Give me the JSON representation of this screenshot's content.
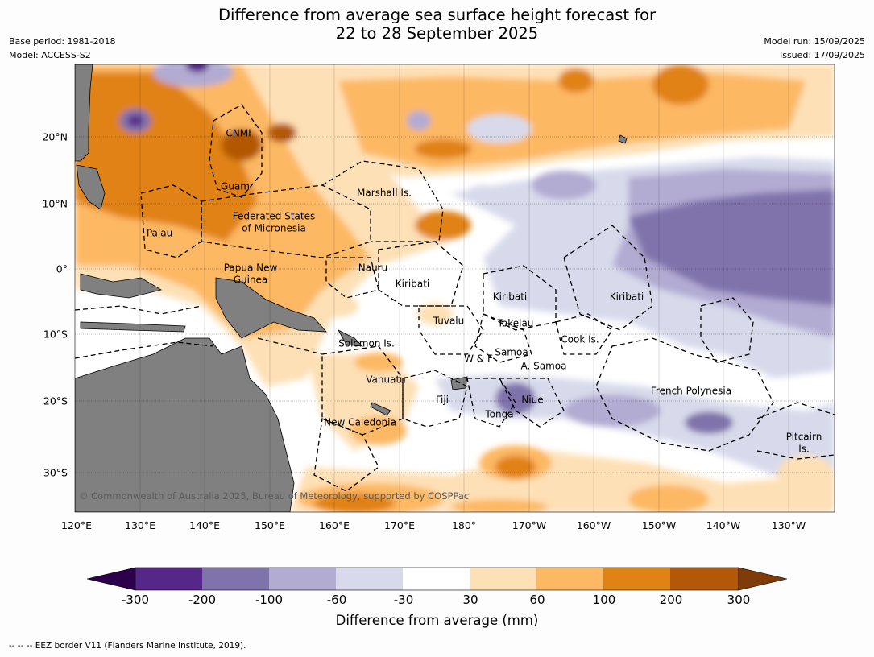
{
  "title": {
    "line1": "Difference from average sea surface height forecast for",
    "line2": "22 to 28 September 2025"
  },
  "meta_left": {
    "base_period": "Base period: 1981-2018",
    "model": "Model: ACCESS-S2"
  },
  "meta_right": {
    "model_run": "Model run: 15/09/2025",
    "issued": "Issued: 17/09/2025"
  },
  "map": {
    "lon_ticks": [
      "120°E",
      "130°E",
      "140°E",
      "150°E",
      "160°E",
      "170°E",
      "180°",
      "170°W",
      "160°W",
      "150°W",
      "140°W",
      "130°W"
    ],
    "lat_ticks": [
      "20°N",
      "10°N",
      "0°",
      "10°S",
      "20°S",
      "30°S"
    ],
    "regions": {
      "cnmi": "CNMI",
      "guam": "Guam",
      "marshall": "Marshall Is.",
      "fsm1": "Federated States",
      "fsm2": "of Micronesia",
      "palau": "Palau",
      "png1": "Papua New",
      "png2": "Guinea",
      "nauru": "Nauru",
      "kiribati_w": "Kiribati",
      "kiribati_c": "Kiribati",
      "kiribati_e": "Kiribati",
      "tuvalu": "Tuvalu",
      "tokelau": "Tokelau",
      "solomon": "Solomon Is.",
      "wallis": "W & F",
      "samoa": "Samoa",
      "am_samoa": "A. Samoa",
      "cook": "Cook Is.",
      "vanuatu": "Vanuatu",
      "fiji": "Fiji",
      "niue": "Niue",
      "tonga": "Tonga",
      "french_poly": "French Polynesia",
      "new_caledonia": "New Caledonia",
      "pitcairn1": "Pitcairn",
      "pitcairn2": "Is."
    },
    "copyright": "© Commonwealth of Australia 2025, Bureau of Meteorology, supported by COSPPac",
    "colors": {
      "ocean_neutral": "#ffffff",
      "land": "#808080"
    }
  },
  "colorbar": {
    "ticks": [
      "-300",
      "-200",
      "-100",
      "-60",
      "-30",
      "30",
      "60",
      "100",
      "200",
      "300"
    ],
    "colors": [
      "#2d004b",
      "#542788",
      "#8073ac",
      "#b2abd2",
      "#d8daeb",
      "#ffffff",
      "#fee0b6",
      "#fdb863",
      "#e08214",
      "#b35806",
      "#7f3b08"
    ],
    "label": "Difference from average (mm)"
  },
  "footnote": "--  --  -- EEZ border V11 (Flanders Marine Institute, 2019)."
}
